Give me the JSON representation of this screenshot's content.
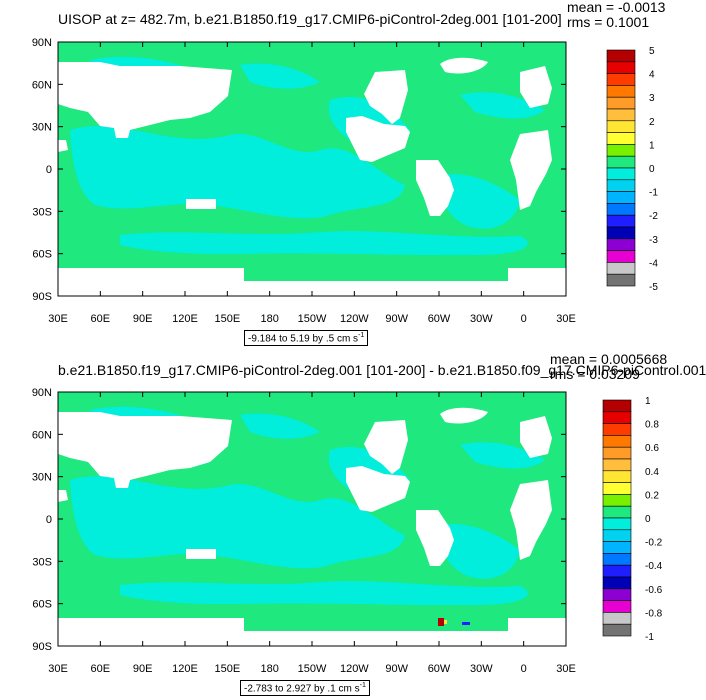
{
  "colors": {
    "ocean_base": "#1ee87e",
    "ocean_cyan": "#00eedb",
    "land": "#ffffff",
    "frame": "#000000"
  },
  "chart_data": [
    {
      "type": "heatmap",
      "title": "UISOP at z= 482.7m, b.e21.B1850.f19_g17.CMIP6-piControl-2deg.001 [101-200]",
      "stats": {
        "mean_label": "mean = -0.0013",
        "rms_label": "rms = 0.1001"
      },
      "y_ticks": [
        "90N",
        "60N",
        "30N",
        "0",
        "30S",
        "60S",
        "90S"
      ],
      "x_ticks": [
        "30E",
        "60E",
        "90E",
        "120E",
        "150E",
        "180",
        "150W",
        "120W",
        "90W",
        "60W",
        "30W",
        "0",
        "30E"
      ],
      "range_label": "-9.184 to 5.19 by .5 cm s",
      "units_exponent": "-1",
      "colorbar": {
        "labels": [
          "5",
          "4",
          "3",
          "2",
          "1",
          "0",
          "-1",
          "-2",
          "-3",
          "-4",
          "-5"
        ],
        "colors": [
          "#b40000",
          "#e60000",
          "#ff3c00",
          "#ff7800",
          "#ff9b28",
          "#ffbe3c",
          "#ffe632",
          "#ffff32",
          "#78f000",
          "#1ee87e",
          "#00eedb",
          "#00d2f0",
          "#00b4ff",
          "#0078ff",
          "#1e1eff",
          "#0000b4",
          "#8c00d2",
          "#e600d2",
          "#c8c8c8",
          "#737373"
        ]
      }
    },
    {
      "type": "heatmap",
      "title": "b.e21.B1850.f19_g17.CMIP6-piControl-2deg.001 [101-200] - b.e21.B1850.f09_g17.CMIP6-piControl.001",
      "stats": {
        "mean_label": "mean = 0.0005668",
        "rms_label": "rms = 0.03209"
      },
      "y_ticks": [
        "90N",
        "60N",
        "30N",
        "0",
        "30S",
        "60S",
        "90S"
      ],
      "x_ticks": [
        "30E",
        "60E",
        "90E",
        "120E",
        "150E",
        "180",
        "150W",
        "120W",
        "90W",
        "60W",
        "30W",
        "0",
        "30E"
      ],
      "range_label": "-2.783 to 2.927 by .1 cm s",
      "units_exponent": "-1",
      "colorbar": {
        "labels": [
          "1",
          "0.8",
          "0.6",
          "0.4",
          "0.2",
          "0",
          "-0.2",
          "-0.4",
          "-0.6",
          "-0.8",
          "-1"
        ],
        "colors": [
          "#b40000",
          "#e60000",
          "#ff3c00",
          "#ff7800",
          "#ff9b28",
          "#ffbe3c",
          "#ffe632",
          "#ffff32",
          "#78f000",
          "#1ee87e",
          "#00eedb",
          "#00d2f0",
          "#00b4ff",
          "#0078ff",
          "#1e1eff",
          "#0000b4",
          "#8c00d2",
          "#e600d2",
          "#c8c8c8",
          "#737373"
        ]
      }
    }
  ]
}
